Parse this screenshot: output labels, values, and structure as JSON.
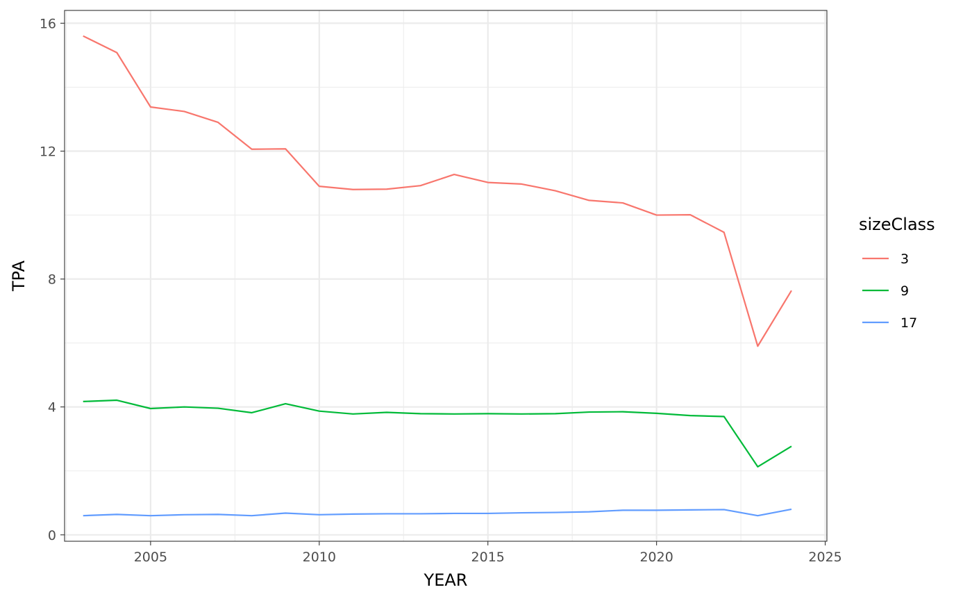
{
  "chart_data": {
    "type": "line",
    "title": "",
    "xlabel": "YEAR",
    "ylabel": "TPA",
    "xlim": [
      2002.45,
      2025.05
    ],
    "ylim": [
      -0.2,
      16.4
    ],
    "x_ticks": [
      2005,
      2010,
      2015,
      2020,
      2025
    ],
    "y_ticks": [
      0,
      4,
      8,
      12,
      16
    ],
    "grid": true,
    "legend": {
      "title": "sizeClass",
      "position": "right"
    },
    "x": [
      2003,
      2004,
      2005,
      2006,
      2007,
      2008,
      2009,
      2010,
      2011,
      2012,
      2013,
      2014,
      2015,
      2016,
      2017,
      2018,
      2019,
      2020,
      2021,
      2022,
      2023,
      2024
    ],
    "series": [
      {
        "name": "3",
        "color": "#F8766D",
        "values": [
          15.6,
          15.08,
          13.38,
          13.24,
          12.9,
          12.06,
          12.07,
          10.9,
          10.8,
          10.81,
          10.92,
          11.27,
          11.02,
          10.97,
          10.76,
          10.46,
          10.38,
          10.0,
          10.01,
          9.46,
          5.9,
          7.64
        ]
      },
      {
        "name": "9",
        "color": "#00BA38",
        "values": [
          4.17,
          4.21,
          3.95,
          4.0,
          3.96,
          3.82,
          4.1,
          3.87,
          3.78,
          3.83,
          3.79,
          3.78,
          3.79,
          3.78,
          3.79,
          3.84,
          3.85,
          3.8,
          3.73,
          3.7,
          2.13,
          2.77
        ]
      },
      {
        "name": "17",
        "color": "#619CFF",
        "values": [
          0.6,
          0.64,
          0.6,
          0.63,
          0.64,
          0.6,
          0.68,
          0.63,
          0.65,
          0.66,
          0.66,
          0.67,
          0.67,
          0.69,
          0.7,
          0.72,
          0.77,
          0.77,
          0.78,
          0.79,
          0.6,
          0.8
        ]
      }
    ]
  }
}
